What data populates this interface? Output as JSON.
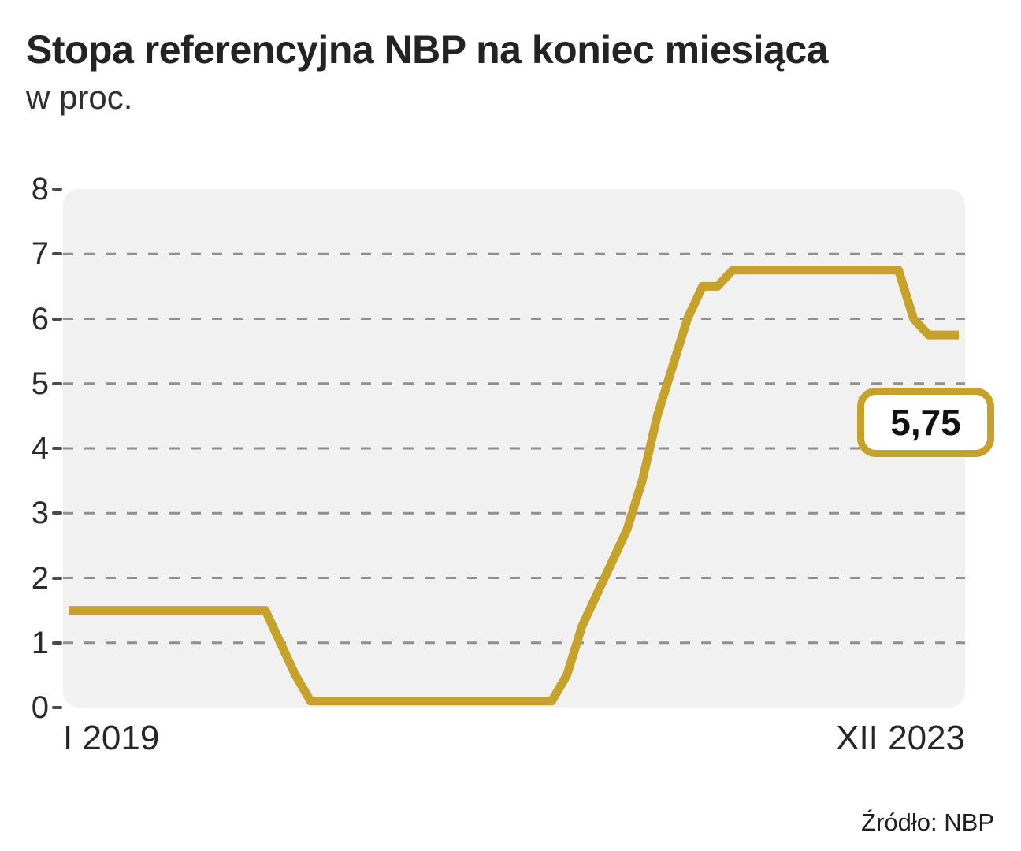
{
  "title": "Stopa referencyjna NBP na koniec miesiąca",
  "subtitle": "w proc.",
  "source": "Źródło: NBP",
  "chart_data": {
    "type": "line",
    "title": "Stopa referencyjna NBP na koniec miesiąca",
    "ylabel": "proc.",
    "ylim": [
      0,
      8
    ],
    "yticks": [
      8,
      7,
      6,
      5,
      4,
      3,
      2,
      1,
      0
    ],
    "grid": "dashed-horizontal",
    "x_unit": "month",
    "x_start_label": "I 2019",
    "x_end_label": "XII 2023",
    "end_value_label": "5,75",
    "line_color": "#C7A22B",
    "plot_background": "#f1f1f2",
    "series": [
      {
        "name": "Stopa referencyjna NBP",
        "values": [
          1.5,
          1.5,
          1.5,
          1.5,
          1.5,
          1.5,
          1.5,
          1.5,
          1.5,
          1.5,
          1.5,
          1.5,
          1.5,
          1.5,
          1.0,
          0.5,
          0.1,
          0.1,
          0.1,
          0.1,
          0.1,
          0.1,
          0.1,
          0.1,
          0.1,
          0.1,
          0.1,
          0.1,
          0.1,
          0.1,
          0.1,
          0.1,
          0.1,
          0.5,
          1.25,
          1.75,
          2.25,
          2.75,
          3.5,
          4.5,
          5.25,
          6.0,
          6.5,
          6.5,
          6.75,
          6.75,
          6.75,
          6.75,
          6.75,
          6.75,
          6.75,
          6.75,
          6.75,
          6.75,
          6.75,
          6.75,
          6.0,
          5.75,
          5.75,
          5.75
        ]
      }
    ]
  }
}
